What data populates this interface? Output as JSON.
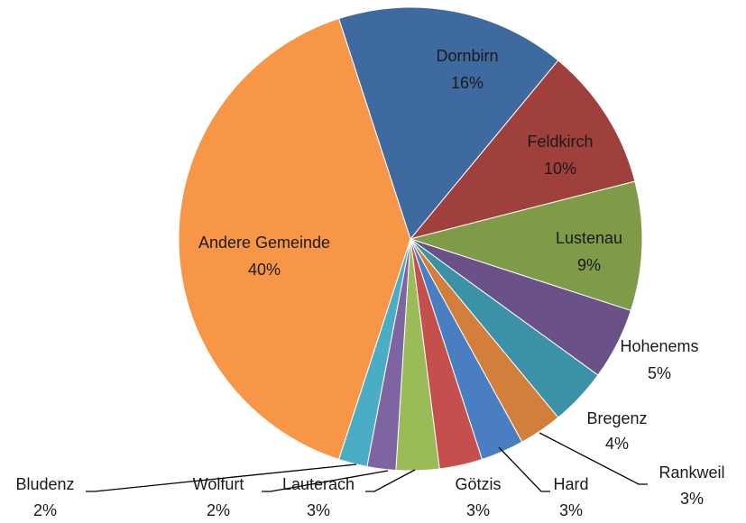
{
  "chart_data": {
    "type": "pie",
    "categories": [
      "Dornbirn",
      "Feldkirch",
      "Lustenau",
      "Hohenems",
      "Bregenz",
      "Rankweil",
      "Hard",
      "Götzis",
      "Lauterach",
      "Wolfurt",
      "Bludenz",
      "Andere Gemeinde"
    ],
    "values": [
      16,
      10,
      9,
      5,
      4,
      3,
      3,
      3,
      3,
      2,
      2,
      40
    ],
    "value_labels": [
      "16%",
      "10%",
      "9%",
      "5%",
      "4%",
      "3%",
      "3%",
      "3%",
      "3%",
      "2%",
      "2%",
      "40%"
    ],
    "colors": [
      "#3f6a9f",
      "#a0403d",
      "#7f9b48",
      "#6a5288",
      "#3b91a6",
      "#d27f3b",
      "#4a7ec2",
      "#c44f4c",
      "#9bbb59",
      "#7f64a2",
      "#4bacc6",
      "#f79646"
    ]
  }
}
